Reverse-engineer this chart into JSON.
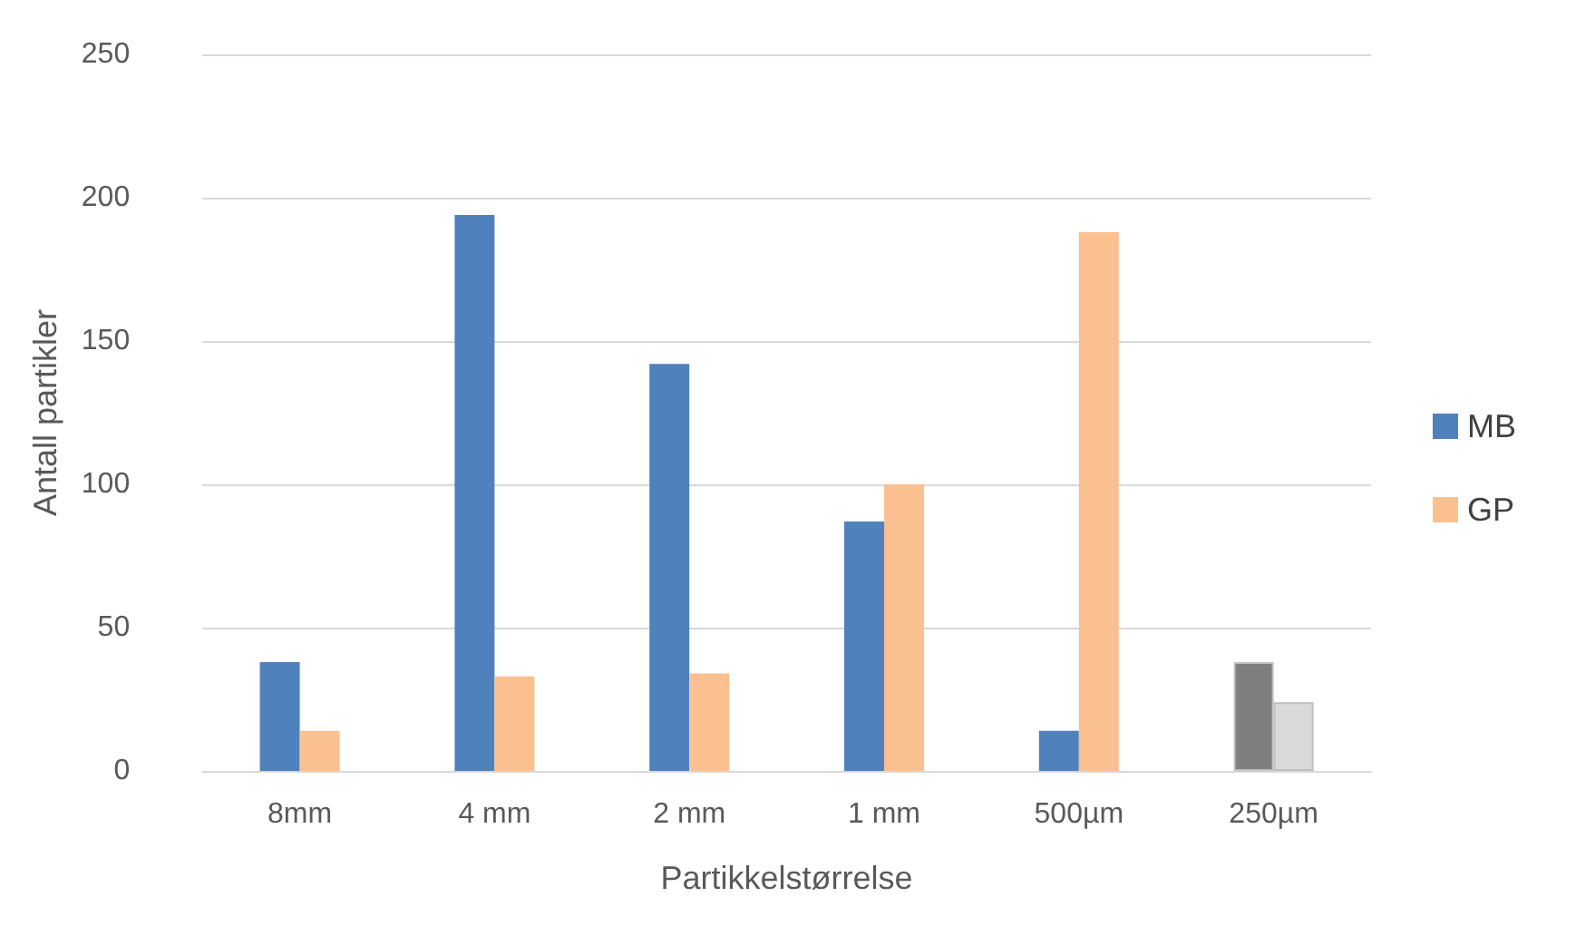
{
  "chart_data": {
    "type": "bar",
    "xlabel": "Partikkelstørrelse",
    "ylabel": "Antall partikler",
    "categories": [
      "8mm",
      "4 mm",
      "2 mm",
      "1 mm",
      "500µm",
      "250µm"
    ],
    "series": [
      {
        "name": "MB",
        "color": "#4f81bd",
        "colors": [
          "#4f81bd",
          "#4f81bd",
          "#4f81bd",
          "#4f81bd",
          "#4f81bd",
          "#7f7f7f"
        ],
        "values": [
          38,
          194,
          142,
          87,
          14,
          38
        ]
      },
      {
        "name": "GP",
        "color": "#fac090",
        "colors": [
          "#fac090",
          "#fac090",
          "#fac090",
          "#fac090",
          "#fac090",
          "#d9d9d9"
        ],
        "values": [
          14,
          33,
          34,
          100,
          188,
          24
        ]
      }
    ],
    "ylim": [
      0,
      250
    ],
    "yticks": [
      0,
      50,
      100,
      150,
      200,
      250
    ],
    "grid": "y",
    "legend": "right"
  }
}
